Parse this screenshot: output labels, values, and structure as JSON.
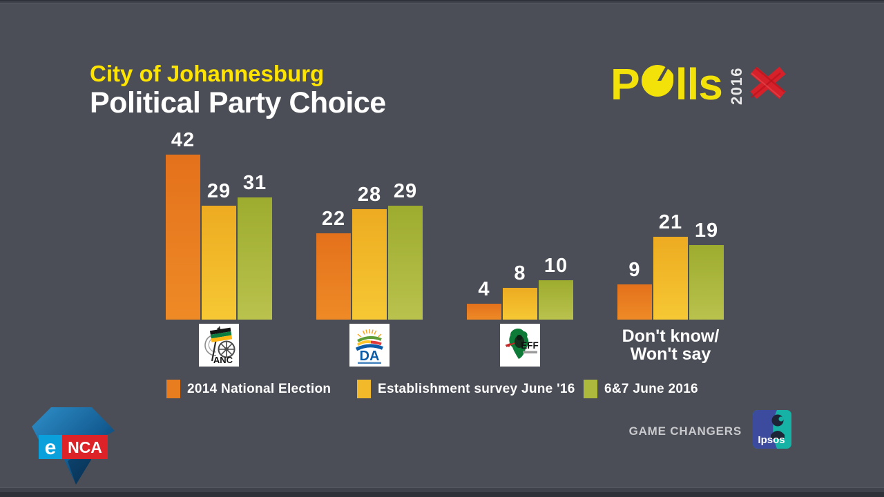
{
  "header": {
    "subtitle": "City of Johannesburg",
    "title": "Political Party Choice"
  },
  "polls_logo": {
    "p": "P",
    "lls": "lls",
    "year": "2016",
    "yellow": "#f3e20a",
    "x_color": "#d7212a"
  },
  "chart_data": {
    "type": "bar",
    "title": "City of Johannesburg — Political Party Choice",
    "unit": "percent",
    "categories": [
      "ANC",
      "DA",
      "EFF",
      "Don't know/Won't say"
    ],
    "series": [
      {
        "name": "2014 National Election",
        "color": "#e87d20",
        "color_top": "#e4711c",
        "color_bottom": "#ee8a26",
        "values": [
          42,
          22,
          4,
          9
        ]
      },
      {
        "name": "Establishment survey June '16",
        "color": "#f2ba2a",
        "color_top": "#edab21",
        "color_bottom": "#f6c834",
        "values": [
          29,
          28,
          8,
          21
        ]
      },
      {
        "name": "6&7 June 2016",
        "color": "#adb93d",
        "color_top": "#9dac2f",
        "color_bottom": "#b9c24d",
        "values": [
          31,
          29,
          10,
          19
        ]
      }
    ],
    "ylim": [
      0,
      45
    ],
    "grid": false,
    "legend_position": "bottom",
    "value_labels": true
  },
  "parties": [
    {
      "short": "ANC"
    },
    {
      "short": "DA"
    },
    {
      "short": "EFF"
    }
  ],
  "dont_know_label": {
    "line1": "Don't know/",
    "line2": "Won't say"
  },
  "footer": {
    "game_changers": "GAME CHANGERS",
    "ipsos": "Ipsos"
  },
  "broadcaster": {
    "e": "e",
    "nca": "NCA"
  }
}
